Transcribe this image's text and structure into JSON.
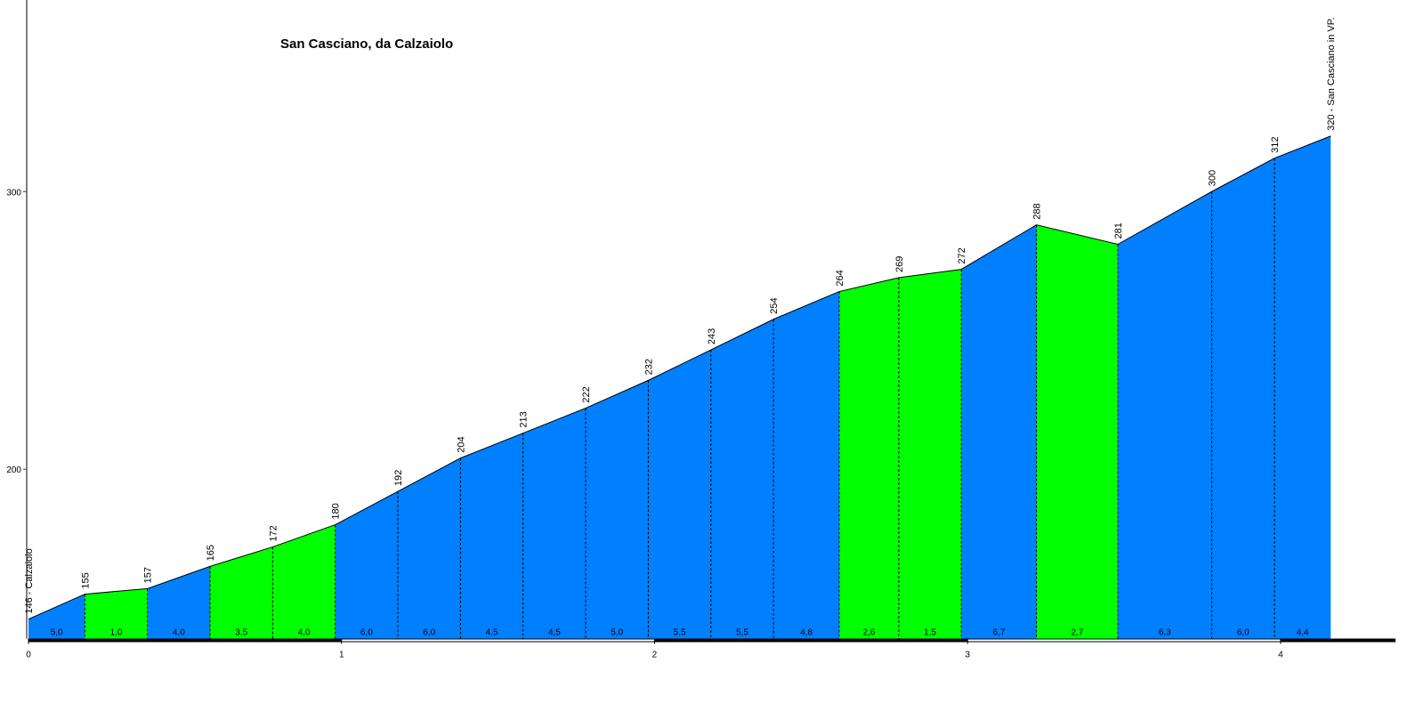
{
  "chart_data": {
    "type": "elevation-profile",
    "title": "San Casciano, da Calzaiolo",
    "x": [
      0,
      0.18,
      0.38,
      0.58,
      0.78,
      0.98,
      1.18,
      1.38,
      1.58,
      1.78,
      1.98,
      2.18,
      2.38,
      2.59,
      2.78,
      2.98,
      3.22,
      3.48,
      3.78,
      3.98,
      4.16
    ],
    "series": [
      {
        "name": "Elevation",
        "values": [
          146,
          155,
          157,
          165,
          172,
          180,
          192,
          204,
          213,
          222,
          232,
          243,
          254,
          264,
          269,
          272,
          288,
          281,
          300,
          312,
          320
        ],
        "value_labels": [
          "146 - Calzaiolo",
          "155",
          "157",
          "165",
          "172",
          "180",
          "192",
          "204",
          "213",
          "222",
          "232",
          "243",
          "254",
          "264",
          "269",
          "272",
          "288",
          "281",
          "300",
          "312",
          "320 - San Casciano in VP."
        ]
      }
    ],
    "gradients": {
      "values": [
        5.0,
        1.0,
        4.0,
        3.5,
        4.0,
        6.0,
        6.0,
        4.5,
        4.5,
        5.0,
        5.5,
        5.5,
        4.8,
        2.6,
        1.5,
        6.7,
        2.7,
        6.3,
        6.0,
        4.4
      ],
      "value_labels": [
        "5,0",
        "1,0",
        "4,0",
        "3,5",
        "4,0",
        "6,0",
        "6,0",
        "4,5",
        "4,5",
        "5,0",
        "5,5",
        "5,5",
        "4,8",
        "2,6",
        "1,5",
        "6,7",
        "2,7",
        "6,3",
        "6,0",
        "4,4"
      ],
      "colors": [
        "#0080ff",
        "#00ff00",
        "#0080ff",
        "#00ff00",
        "#00ff00",
        "#0080ff",
        "#0080ff",
        "#0080ff",
        "#0080ff",
        "#0080ff",
        "#0080ff",
        "#0080ff",
        "#0080ff",
        "#00ff00",
        "#00ff00",
        "#0080ff",
        "#00ff00",
        "#0080ff",
        "#0080ff",
        "#0080ff"
      ]
    },
    "xlim": [
      0,
      4.367
    ],
    "ylim": [
      139,
      369
    ],
    "xticks": [
      0,
      1,
      2,
      3,
      4
    ],
    "yticks": [
      200,
      300
    ]
  }
}
